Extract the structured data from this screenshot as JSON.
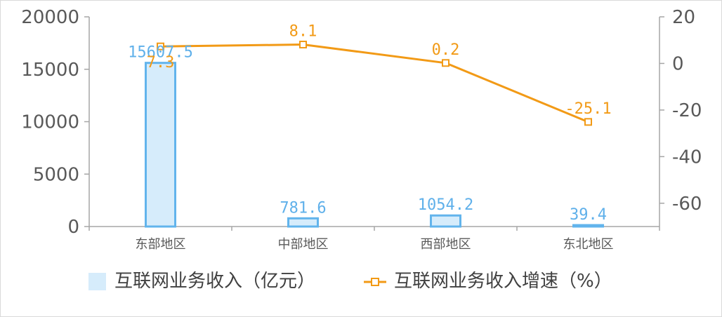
{
  "chart_data": {
    "type": "bar",
    "categories": [
      "东部地区",
      "中部地区",
      "西部地区",
      "东北地区"
    ],
    "series": [
      {
        "name": "互联网业务收入（亿元）",
        "type": "bar",
        "axis": "left",
        "values": [
          15607.5,
          781.6,
          1054.2,
          39.4
        ],
        "labels": [
          "15607.5",
          "781.6",
          "1054.2",
          "39.4"
        ]
      },
      {
        "name": "互联网业务收入增速（%）",
        "type": "line",
        "axis": "right",
        "values": [
          7.3,
          8.1,
          0.2,
          -25.1
        ],
        "labels": [
          "7.3",
          "8.1",
          "0.2",
          "-25.1"
        ]
      }
    ],
    "y_left": {
      "min": 0,
      "max": 20000,
      "ticks": [
        "0",
        "5000",
        "10000",
        "15000",
        "20000"
      ],
      "tick_values": [
        0,
        5000,
        10000,
        15000,
        20000
      ]
    },
    "y_right": {
      "min": -70,
      "max": 20,
      "ticks": [
        "-60",
        "-40",
        "-20",
        "0",
        "20"
      ],
      "tick_values": [
        -60,
        -40,
        -20,
        0,
        20
      ]
    },
    "colors": {
      "bar_fill": "#d6ecfb",
      "bar_stroke": "#62b4ec",
      "bar_label": "#5fb0ea",
      "line": "#f29a16",
      "axis": "#a6a6a6"
    },
    "legend_position": "bottom",
    "grid": false
  }
}
